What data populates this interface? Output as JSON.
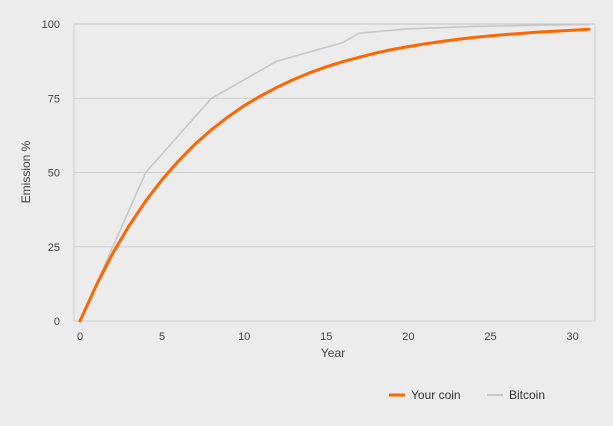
{
  "chart_data": {
    "type": "line",
    "xlabel": "Year",
    "ylabel": "Emission %",
    "xlim": [
      0,
      31
    ],
    "ylim": [
      0,
      100
    ],
    "x_ticks": [
      0,
      5,
      10,
      15,
      20,
      25,
      30
    ],
    "y_ticks": [
      0,
      25,
      50,
      75,
      100
    ],
    "grid": "horizontal",
    "legend_position": "bottom-right",
    "series": [
      {
        "name": "Your coin",
        "color": "#ff6600",
        "x": [
          0,
          1,
          2,
          3,
          4,
          5,
          6,
          7,
          8,
          9,
          10,
          11,
          12,
          13,
          14,
          15,
          16,
          17,
          18,
          19,
          20,
          21,
          22,
          23,
          24,
          25,
          26,
          27,
          28,
          29,
          30,
          31
        ],
        "values": [
          0,
          12.1,
          22.8,
          32.2,
          40.4,
          47.6,
          53.9,
          59.5,
          64.4,
          68.7,
          72.5,
          75.8,
          78.7,
          81.3,
          83.6,
          85.6,
          87.3,
          88.8,
          90.2,
          91.4,
          92.4,
          93.3,
          94.1,
          94.8,
          95.5,
          96.0,
          96.5,
          96.9,
          97.3,
          97.6,
          97.9,
          98.2
        ]
      },
      {
        "name": "Bitcoin",
        "color": "#c8c8c8",
        "x": [
          0,
          4,
          8,
          12,
          16,
          17,
          20,
          24,
          28,
          31
        ],
        "values": [
          0,
          50,
          75,
          87.5,
          93.75,
          96.9,
          98.4,
          99.2,
          99.6,
          99.8
        ]
      }
    ]
  }
}
